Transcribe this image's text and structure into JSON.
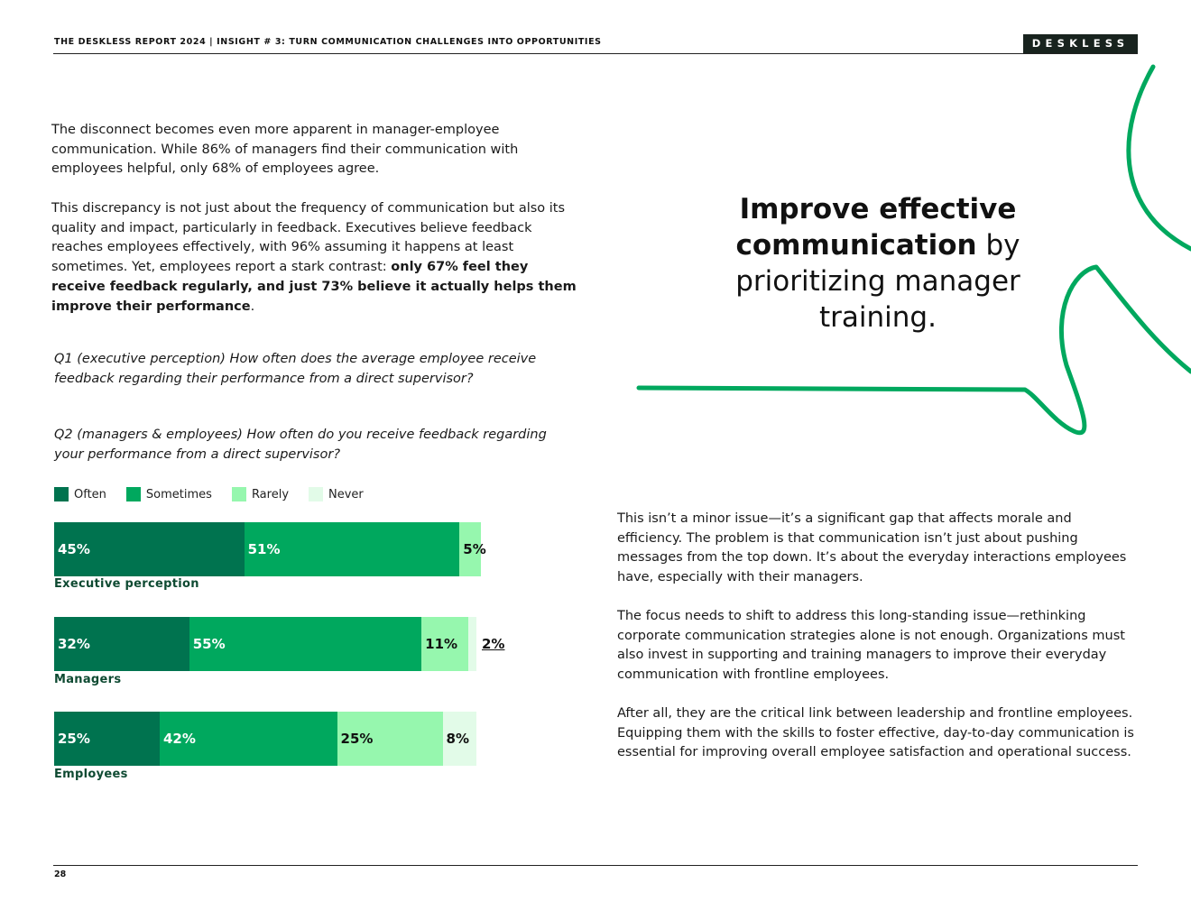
{
  "header": {
    "title": "THE DESKLESS REPORT 2024  |  INSIGHT # 3: TURN COMMUNICATION CHALLENGES INTO OPPORTUNITIES",
    "brand": "DESKLESS"
  },
  "left": {
    "p1": "The disconnect becomes even more apparent in manager-employee communication. While 86% of managers find their communication with employees helpful, only 68% of employees agree.",
    "p2_lead": "This discrepancy is not just about the frequency of communication but also its quality and impact, particularly in feedback. Executives believe feedback reaches employees effectively, with 96% assuming it happens at least sometimes. Yet, employees report a stark contrast: ",
    "p2_bold": "only 67% feel they receive feedback regularly, and just 73% believe it actually helps them improve their performance",
    "p2_end": ".",
    "q1": "Q1 (executive perception) How often does the average employee receive feedback regarding their performance from a direct supervisor?",
    "q2": "Q2 (managers & employees) How often do you receive feedback regarding your performance from a direct supervisor?"
  },
  "chart_data": {
    "type": "bar",
    "orientation": "horizontal",
    "stacked": true,
    "categories": [
      "Executive perception",
      "Managers",
      "Employees"
    ],
    "series": [
      {
        "name": "Often",
        "color": "#00734f",
        "values": [
          45,
          32,
          25
        ],
        "labels": [
          "45%",
          "32%",
          "25%"
        ]
      },
      {
        "name": "Sometimes",
        "color": "#00a85e",
        "values": [
          51,
          55,
          42
        ],
        "labels": [
          "51%",
          "55%",
          "42%"
        ]
      },
      {
        "name": "Rarely",
        "color": "#96f7ae",
        "values": [
          5,
          11,
          25
        ],
        "labels": [
          "5%",
          "11%",
          "25%"
        ]
      },
      {
        "name": "Never",
        "color": "#e2fbe8",
        "values": [
          0,
          2,
          8
        ],
        "labels": [
          "",
          "2%",
          "8%"
        ]
      }
    ],
    "legend_position": "top-left",
    "grid": false
  },
  "right": {
    "headline_bold1": "Improve effective",
    "headline_bold2": "communication",
    "headline_rest1": " by",
    "headline_rest2": "prioritizing manager",
    "headline_rest3": "training.",
    "p1": "This isn’t a minor issue—it’s a significant gap that affects morale and efficiency. The problem is that communication isn’t just about pushing messages from the top down. It’s about the everyday interactions employees have, especially with their managers.",
    "p2": "The focus needs to shift to address this long-standing issue—rethinking corporate communication strategies alone is not enough. Organizations must also invest in supporting and training managers to improve their everyday communication with frontline employees.",
    "p3": "After all, they are the critical link between leadership and frontline employees. Equipping them with the skills to foster effective, day-to-day communication is essential for improving overall employee satisfaction and operational success."
  },
  "footer": {
    "page_number": "28"
  },
  "colors": {
    "accent": "#00a85e",
    "dark": "#18231e"
  }
}
